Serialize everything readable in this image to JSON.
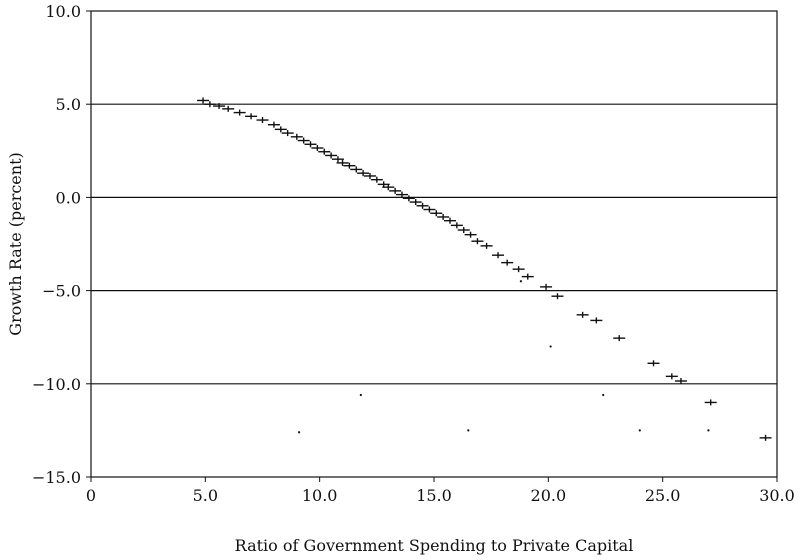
{
  "chart_data": {
    "type": "scatter",
    "title": "",
    "xlabel": "Ratio of Government Spending to Private Capital",
    "ylabel": "Growth Rate (percent)",
    "xlim": [
      0,
      30
    ],
    "ylim": [
      -15,
      10
    ],
    "x_ticks": [
      {
        "value": 0,
        "label": "0"
      },
      {
        "value": 5,
        "label": "5.0"
      },
      {
        "value": 10,
        "label": "10.0"
      },
      {
        "value": 15,
        "label": "15.0"
      },
      {
        "value": 20,
        "label": "20.0"
      },
      {
        "value": 25,
        "label": "25.0"
      },
      {
        "value": 30,
        "label": "30.0"
      }
    ],
    "y_ticks": [
      {
        "value": 10,
        "label": "10.0"
      },
      {
        "value": 5,
        "label": "5.0"
      },
      {
        "value": 0,
        "label": "0.0"
      },
      {
        "value": -5,
        "label": "-5.0"
      },
      {
        "value": -10,
        "label": "-10.0"
      },
      {
        "value": -15,
        "label": "-15.0"
      }
    ],
    "gridlines_y": [
      5,
      0,
      -5,
      -10
    ],
    "grid": "horizontal",
    "legend": "none",
    "colors": {
      "marker": "#111111",
      "gridline": "#111111",
      "axis": "#111111"
    },
    "series": [
      {
        "marker": "plus",
        "points": [
          [
            4.9,
            5.2
          ],
          [
            5.2,
            5.0
          ],
          [
            5.6,
            4.9
          ],
          [
            6.0,
            4.75
          ],
          [
            6.5,
            4.55
          ],
          [
            7.0,
            4.35
          ],
          [
            7.5,
            4.15
          ],
          [
            8.0,
            3.9
          ],
          [
            8.3,
            3.65
          ],
          [
            8.6,
            3.45
          ],
          [
            9.0,
            3.25
          ],
          [
            9.3,
            3.05
          ],
          [
            9.6,
            2.85
          ],
          [
            9.9,
            2.65
          ],
          [
            10.2,
            2.45
          ],
          [
            10.5,
            2.25
          ],
          [
            10.8,
            2.05
          ],
          [
            11.0,
            1.85
          ],
          [
            11.3,
            1.7
          ],
          [
            11.6,
            1.5
          ],
          [
            11.9,
            1.3
          ],
          [
            12.2,
            1.15
          ],
          [
            12.5,
            0.95
          ],
          [
            12.8,
            0.7
          ],
          [
            13.0,
            0.55
          ],
          [
            13.3,
            0.35
          ],
          [
            13.6,
            0.15
          ],
          [
            13.9,
            -0.05
          ],
          [
            14.2,
            -0.25
          ],
          [
            14.5,
            -0.45
          ],
          [
            14.8,
            -0.65
          ],
          [
            15.1,
            -0.85
          ],
          [
            15.4,
            -1.05
          ],
          [
            15.7,
            -1.25
          ],
          [
            16.0,
            -1.5
          ],
          [
            16.3,
            -1.75
          ],
          [
            16.6,
            -2.0
          ],
          [
            16.9,
            -2.35
          ],
          [
            17.3,
            -2.6
          ],
          [
            17.8,
            -3.1
          ],
          [
            18.2,
            -3.5
          ],
          [
            18.7,
            -3.85
          ],
          [
            19.1,
            -4.25
          ],
          [
            19.9,
            -4.8
          ],
          [
            20.4,
            -5.3
          ],
          [
            21.5,
            -6.3
          ],
          [
            22.1,
            -6.6
          ],
          [
            23.1,
            -7.55
          ],
          [
            24.6,
            -8.9
          ],
          [
            25.4,
            -9.6
          ],
          [
            25.8,
            -9.85
          ],
          [
            27.1,
            -11.0
          ],
          [
            29.5,
            -12.9
          ]
        ]
      },
      {
        "marker": "dot",
        "points": [
          [
            9.1,
            -12.6
          ],
          [
            11.8,
            -10.6
          ],
          [
            16.5,
            -12.5
          ],
          [
            20.1,
            -8.0
          ],
          [
            22.4,
            -10.6
          ],
          [
            24.0,
            -12.5
          ],
          [
            27.0,
            -12.5
          ],
          [
            18.8,
            -4.5
          ]
        ]
      }
    ]
  }
}
